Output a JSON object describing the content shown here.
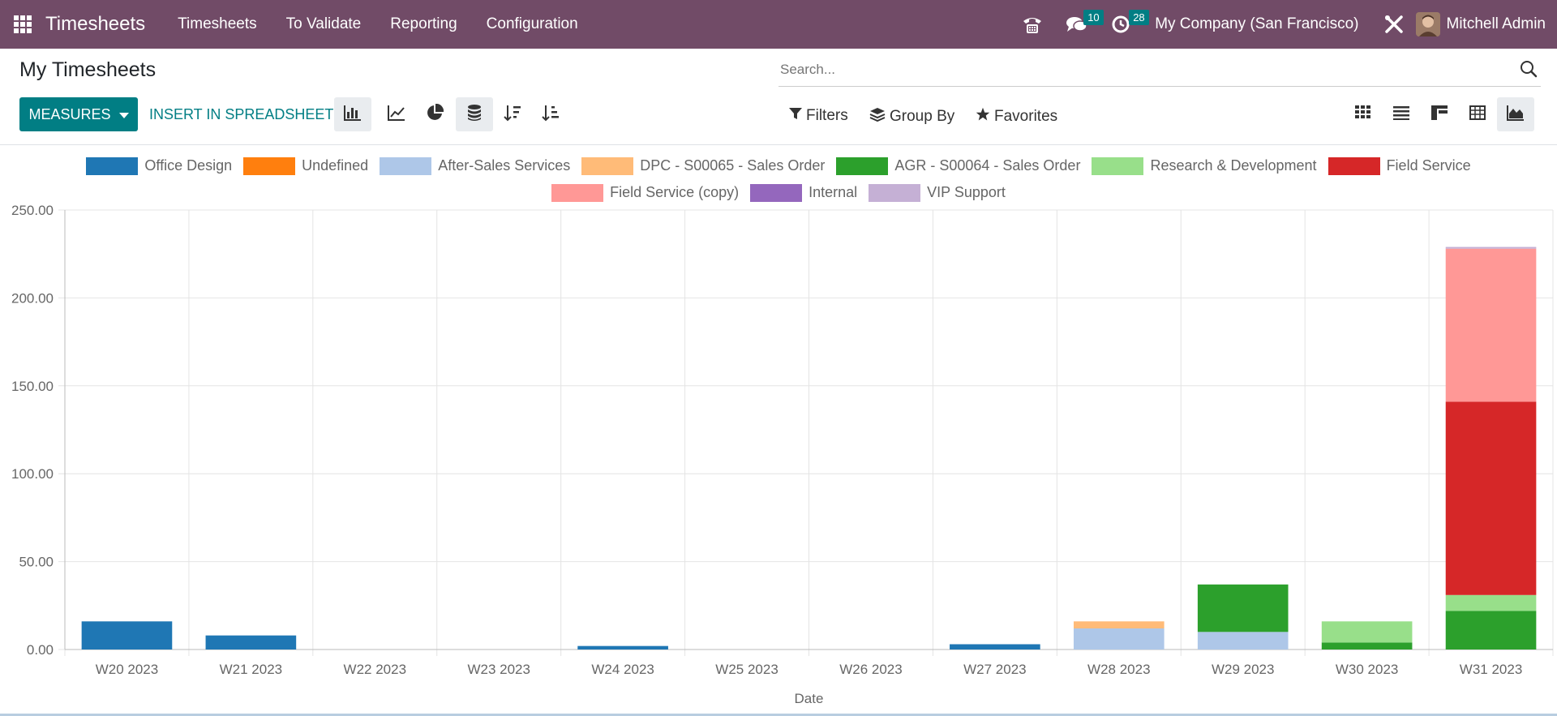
{
  "navbar": {
    "brand": "Timesheets",
    "menus": [
      "Timesheets",
      "To Validate",
      "Reporting",
      "Configuration"
    ],
    "messages_count": "10",
    "activities_count": "28",
    "company": "My Company (San Francisco)",
    "user": "Mitchell Admin",
    "bg_color": "#714B67"
  },
  "control_panel": {
    "title": "My Timesheets",
    "measures_label": "MEASURES",
    "insert_label": "INSERT IN SPREADSHEET",
    "search_placeholder": "Search...",
    "filters_label": "Filters",
    "groupby_label": "Group By",
    "favorites_label": "Favorites"
  },
  "chart_data": {
    "type": "bar",
    "stacked": true,
    "xlabel": "Date",
    "ylabel": "",
    "ylim": [
      0,
      250
    ],
    "y_ticks": [
      "0.00",
      "50.00",
      "100.00",
      "150.00",
      "200.00",
      "250.00"
    ],
    "grid": true,
    "legend_position": "top",
    "categories": [
      "W20 2023",
      "W21 2023",
      "W22 2023",
      "W23 2023",
      "W24 2023",
      "W25 2023",
      "W26 2023",
      "W27 2023",
      "W28 2023",
      "W29 2023",
      "W30 2023",
      "W31 2023"
    ],
    "series": [
      {
        "name": "Office Design",
        "color": "#1f77b4",
        "values": [
          16,
          8,
          0,
          0,
          2,
          0,
          0,
          3,
          0,
          0,
          0,
          0
        ]
      },
      {
        "name": "Undefined",
        "color": "#ff7f0e",
        "values": [
          0,
          0,
          0,
          0,
          0,
          0,
          0,
          0,
          0,
          0,
          0,
          0
        ]
      },
      {
        "name": "After-Sales Services",
        "color": "#aec7e8",
        "values": [
          0,
          0,
          0,
          0,
          0,
          0,
          0,
          0,
          12,
          10,
          0,
          0
        ]
      },
      {
        "name": "DPC - S00065 - Sales Order",
        "color": "#ffbb78",
        "values": [
          0,
          0,
          0,
          0,
          0,
          0,
          0,
          0,
          4,
          0,
          0,
          0
        ]
      },
      {
        "name": "AGR - S00064 - Sales Order",
        "color": "#2ca02c",
        "values": [
          0,
          0,
          0,
          0,
          0,
          0,
          0,
          0,
          0,
          27,
          4,
          22
        ]
      },
      {
        "name": "Research & Development",
        "color": "#98df8a",
        "values": [
          0,
          0,
          0,
          0,
          0,
          0,
          0,
          0,
          0,
          0,
          12,
          9
        ]
      },
      {
        "name": "Field Service",
        "color": "#d62728",
        "values": [
          0,
          0,
          0,
          0,
          0,
          0,
          0,
          0,
          0,
          0,
          0,
          110
        ]
      },
      {
        "name": "Field Service (copy)",
        "color": "#ff9896",
        "values": [
          0,
          0,
          0,
          0,
          0,
          0,
          0,
          0,
          0,
          0,
          0,
          87
        ]
      },
      {
        "name": "Internal",
        "color": "#9467bd",
        "values": [
          0,
          0,
          0,
          0,
          0,
          0,
          0,
          0,
          0,
          0,
          0,
          0
        ]
      },
      {
        "name": "VIP Support",
        "color": "#c5b0d5",
        "values": [
          0,
          0,
          0,
          0,
          0,
          0,
          0,
          0,
          0,
          0,
          0,
          1
        ]
      }
    ]
  }
}
